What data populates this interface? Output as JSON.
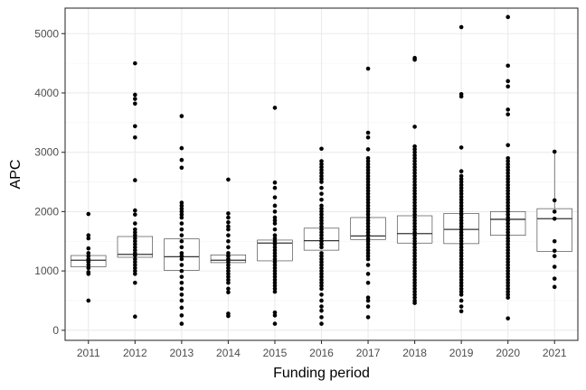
{
  "chart_data": {
    "type": "box",
    "xlabel": "Funding period",
    "ylabel": "APC",
    "ylim": [
      -170,
      5430
    ],
    "yticks": [
      0,
      1000,
      2000,
      3000,
      4000,
      5000
    ],
    "grid": true,
    "categories": [
      "2011",
      "2012",
      "2013",
      "2014",
      "2015",
      "2016",
      "2017",
      "2018",
      "2019",
      "2020",
      "2021"
    ],
    "boxes": [
      {
        "category": "2011",
        "q1": 1070,
        "median": 1180,
        "q3": 1260,
        "whisker_low": 1070,
        "whisker_high": 1260,
        "points": [
          1960,
          1600,
          1550,
          1380,
          1300,
          1250,
          1200,
          1180,
          1150,
          1100,
          1050,
          980,
          950,
          500
        ]
      },
      {
        "category": "2012",
        "q1": 1230,
        "median": 1280,
        "q3": 1580,
        "whisker_low": 1230,
        "whisker_high": 1580,
        "points": [
          4500,
          3970,
          3900,
          3820,
          3440,
          3250,
          2530,
          2020,
          1950,
          1800,
          1700,
          1650,
          1600,
          1550,
          1500,
          1450,
          1400,
          1350,
          1300,
          1260,
          1200,
          1150,
          1100,
          1050,
          1000,
          950,
          800,
          230
        ]
      },
      {
        "category": "2013",
        "q1": 1010,
        "median": 1240,
        "q3": 1540,
        "whisker_low": 1010,
        "whisker_high": 1540,
        "points": [
          3610,
          3070,
          2870,
          2740,
          2150,
          2100,
          2050,
          2000,
          1950,
          1900,
          1800,
          1700,
          1600,
          1500,
          1400,
          1300,
          1250,
          1200,
          1100,
          1000,
          900,
          800,
          700,
          600,
          500,
          380,
          250,
          110
        ]
      },
      {
        "category": "2014",
        "q1": 1140,
        "median": 1180,
        "q3": 1270,
        "whisker_low": 1140,
        "whisker_high": 1270,
        "points": [
          2540,
          1970,
          1900,
          1820,
          1750,
          1700,
          1600,
          1500,
          1400,
          1300,
          1250,
          1200,
          1150,
          1100,
          1050,
          1000,
          950,
          900,
          850,
          800,
          700,
          640,
          280,
          240
        ]
      },
      {
        "category": "2015",
        "q1": 1170,
        "median": 1470,
        "q3": 1520,
        "whisker_low": 1170,
        "whisker_high": 1520,
        "points": [
          3750,
          2490,
          2400,
          2240,
          2100,
          2000,
          1900,
          1850,
          1800,
          1700,
          1600,
          1550,
          1500,
          1450,
          1400,
          1350,
          1300,
          1250,
          1200,
          1150,
          1100,
          1050,
          1000,
          950,
          900,
          850,
          800,
          750,
          700,
          650,
          300,
          250,
          110
        ]
      },
      {
        "category": "2016",
        "q1": 1350,
        "median": 1510,
        "q3": 1720,
        "whisker_low": 1350,
        "whisker_high": 1720,
        "points": [
          3060,
          2850,
          2800,
          2750,
          2700,
          2650,
          2600,
          2550,
          2500,
          2400,
          2300,
          2200,
          2100,
          2050,
          2000,
          1950,
          1900,
          1850,
          1800,
          1750,
          1700,
          1650,
          1600,
          1550,
          1500,
          1450,
          1400,
          1300,
          1250,
          1200,
          1150,
          1100,
          1050,
          1000,
          950,
          900,
          850,
          800,
          750,
          700,
          600,
          500,
          400,
          330,
          220,
          110
        ]
      },
      {
        "category": "2017",
        "q1": 1530,
        "median": 1590,
        "q3": 1900,
        "whisker_low": 1530,
        "whisker_high": 1900,
        "points": [
          4410,
          3330,
          3250,
          3050,
          2900,
          2850,
          2800,
          2750,
          2700,
          2650,
          2600,
          2550,
          2500,
          2450,
          2400,
          2350,
          2300,
          2250,
          2200,
          2150,
          2100,
          2050,
          2000,
          1950,
          1900,
          1850,
          1800,
          1750,
          1700,
          1650,
          1600,
          1550,
          1500,
          1450,
          1400,
          1350,
          1300,
          1250,
          1200,
          1100,
          950,
          800,
          550,
          500,
          400,
          220
        ]
      },
      {
        "category": "2018",
        "q1": 1470,
        "median": 1630,
        "q3": 1930,
        "whisker_low": 1470,
        "whisker_high": 1930,
        "points": [
          4590,
          4560,
          3430,
          3100,
          3050,
          3000,
          2950,
          2900,
          2850,
          2800,
          2750,
          2700,
          2650,
          2600,
          2550,
          2500,
          2450,
          2400,
          2350,
          2300,
          2250,
          2200,
          2150,
          2100,
          2050,
          2000,
          1950,
          1900,
          1850,
          1800,
          1750,
          1700,
          1650,
          1600,
          1550,
          1500,
          1450,
          1400,
          1350,
          1300,
          1250,
          1200,
          1150,
          1100,
          1050,
          1000,
          950,
          900,
          850,
          800,
          750,
          700,
          650,
          600,
          550,
          500,
          460
        ]
      },
      {
        "category": "2019",
        "q1": 1460,
        "median": 1700,
        "q3": 1970,
        "whisker_low": 1460,
        "whisker_high": 1970,
        "points": [
          5110,
          3980,
          3940,
          3080,
          2680,
          2600,
          2550,
          2500,
          2450,
          2400,
          2350,
          2300,
          2250,
          2200,
          2150,
          2100,
          2050,
          2000,
          1950,
          1900,
          1850,
          1800,
          1750,
          1700,
          1650,
          1600,
          1550,
          1500,
          1450,
          1400,
          1350,
          1300,
          1250,
          1200,
          1150,
          1100,
          1050,
          1000,
          950,
          900,
          850,
          800,
          750,
          700,
          650,
          600,
          500,
          400,
          320
        ]
      },
      {
        "category": "2020",
        "q1": 1600,
        "median": 1870,
        "q3": 2000,
        "whisker_low": 1600,
        "whisker_high": 2000,
        "points": [
          5280,
          4460,
          4200,
          4110,
          3720,
          3640,
          3120,
          2900,
          2850,
          2800,
          2750,
          2700,
          2650,
          2600,
          2550,
          2500,
          2450,
          2400,
          2350,
          2300,
          2250,
          2200,
          2150,
          2100,
          2050,
          2000,
          1950,
          1900,
          1850,
          1800,
          1750,
          1700,
          1650,
          1600,
          1550,
          1500,
          1450,
          1400,
          1350,
          1300,
          1250,
          1200,
          1150,
          1100,
          1050,
          1000,
          950,
          900,
          850,
          800,
          750,
          700,
          650,
          600,
          550,
          200
        ]
      },
      {
        "category": "2021",
        "q1": 1330,
        "median": 1880,
        "q3": 2050,
        "whisker_low": 1330,
        "whisker_high": 3010,
        "points": [
          3010,
          2190,
          2000,
          1880,
          1500,
          1340,
          1250,
          1070,
          870,
          730
        ]
      }
    ]
  }
}
